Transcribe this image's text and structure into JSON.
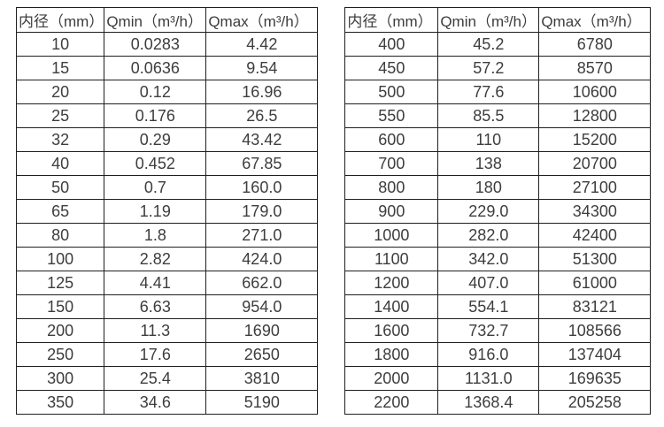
{
  "tables": [
    {
      "name": "small-diameter-flow-range",
      "headers": [
        "内径（mm）",
        "Qmin（m³/h）",
        "Qmax（m³/h）"
      ],
      "rows": [
        [
          "10",
          "0.0283",
          "4.42"
        ],
        [
          "15",
          "0.0636",
          "9.54"
        ],
        [
          "20",
          "0.12",
          "16.96"
        ],
        [
          "25",
          "0.176",
          "26.5"
        ],
        [
          "32",
          "0.29",
          "43.42"
        ],
        [
          "40",
          "0.452",
          "67.85"
        ],
        [
          "50",
          "0.7",
          "160.0"
        ],
        [
          "65",
          "1.19",
          "179.0"
        ],
        [
          "80",
          "1.8",
          "271.0"
        ],
        [
          "100",
          "2.82",
          "424.0"
        ],
        [
          "125",
          "4.41",
          "662.0"
        ],
        [
          "150",
          "6.63",
          "954.0"
        ],
        [
          "200",
          "11.3",
          "1690"
        ],
        [
          "250",
          "17.6",
          "2650"
        ],
        [
          "300",
          "25.4",
          "3810"
        ],
        [
          "350",
          "34.6",
          "5190"
        ]
      ]
    },
    {
      "name": "large-diameter-flow-range",
      "headers": [
        "内径（mm）",
        "Qmin（m³/h）",
        "Qmax（m³/h）"
      ],
      "rows": [
        [
          "400",
          "45.2",
          "6780"
        ],
        [
          "450",
          "57.2",
          "8570"
        ],
        [
          "500",
          "77.6",
          "10600"
        ],
        [
          "550",
          "85.5",
          "12800"
        ],
        [
          "600",
          "110",
          "15200"
        ],
        [
          "700",
          "138",
          "20700"
        ],
        [
          "800",
          "180",
          "27100"
        ],
        [
          "900",
          "229.0",
          "34300"
        ],
        [
          "1000",
          "282.0",
          "42400"
        ],
        [
          "1100",
          "342.0",
          "51300"
        ],
        [
          "1200",
          "407.0",
          "61000"
        ],
        [
          "1400",
          "554.1",
          "83121"
        ],
        [
          "1600",
          "732.7",
          "108566"
        ],
        [
          "1800",
          "916.0",
          "137404"
        ],
        [
          "2000",
          "1131.0",
          "169635"
        ],
        [
          "2200",
          "1368.4",
          "205258"
        ]
      ]
    }
  ],
  "colors": {
    "border": "#1f1f1f",
    "text": "#3d3d3d",
    "background": "#ffffff"
  }
}
